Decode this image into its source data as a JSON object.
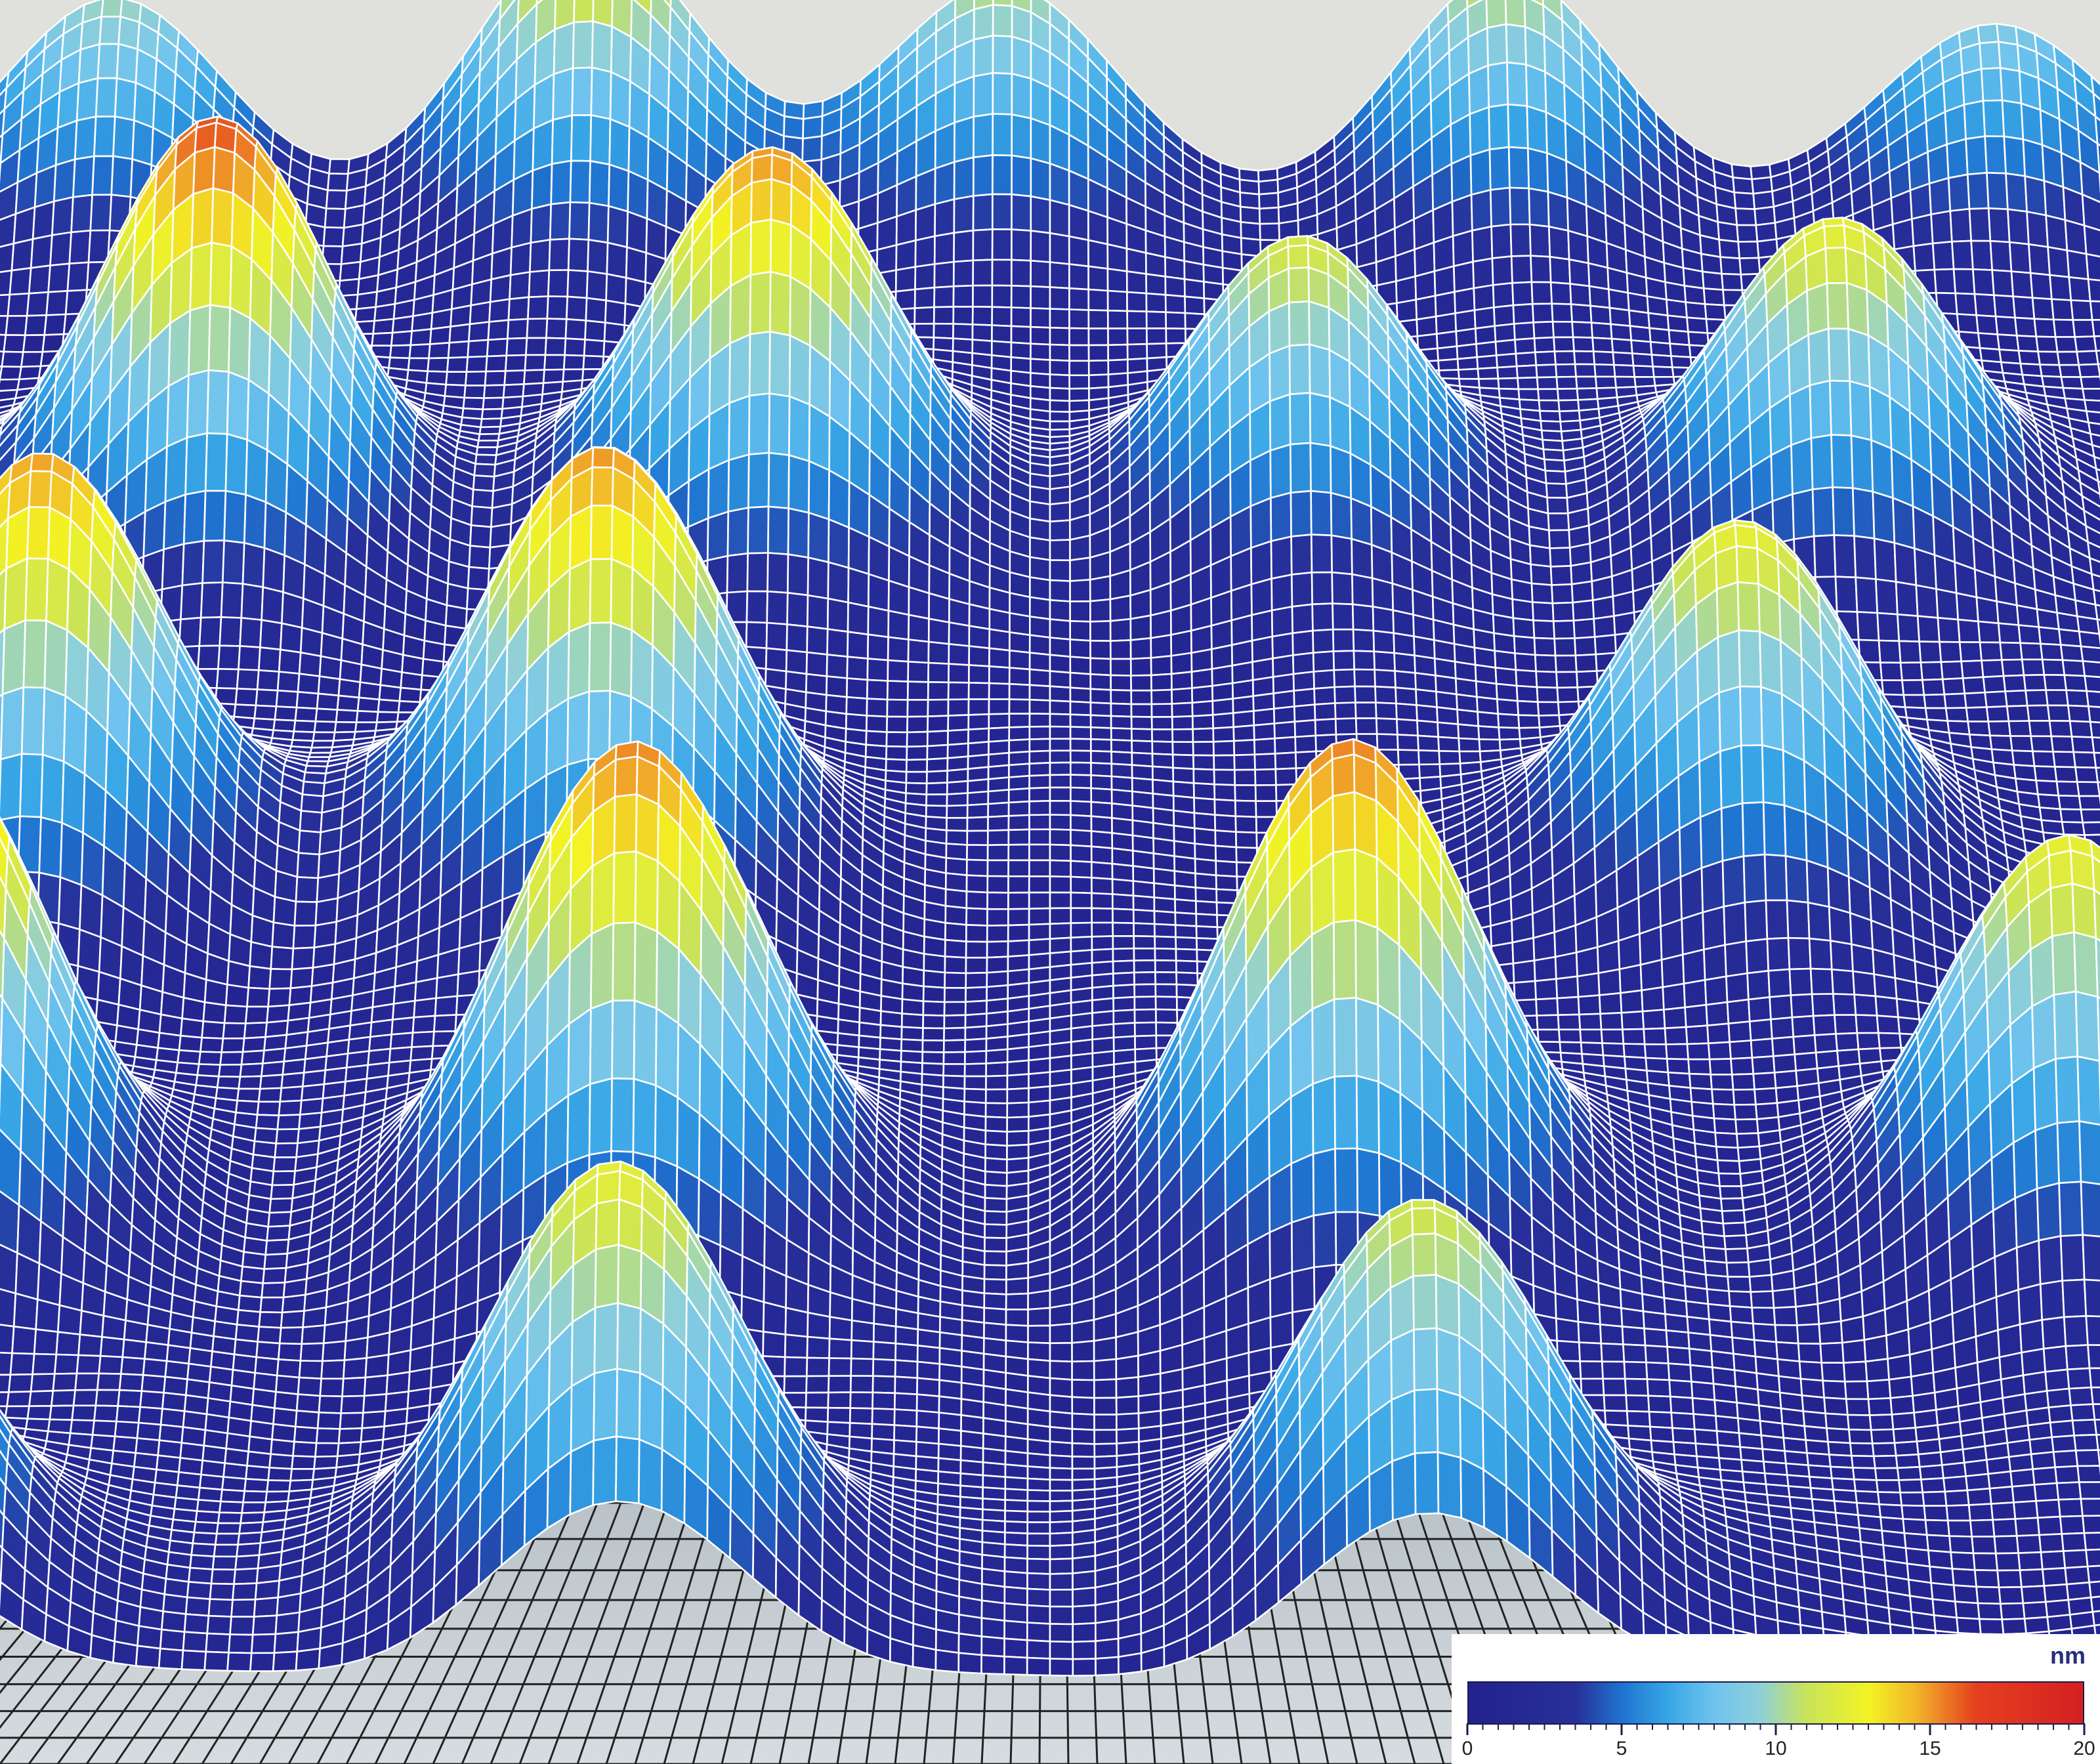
{
  "chart_data": {
    "type": "surface",
    "description_colormap": "blue-cyan-yellow-red",
    "colorbar": {
      "unit": "nm",
      "ticks": [
        0,
        5,
        10,
        15,
        20
      ],
      "range": [
        0,
        20
      ],
      "stops": [
        {
          "value": 0,
          "color": "#23218e"
        },
        {
          "value": 3.5,
          "color": "#27309a"
        },
        {
          "value": 5,
          "color": "#1f74d0"
        },
        {
          "value": 6.5,
          "color": "#38a6e6"
        },
        {
          "value": 8,
          "color": "#6fc3ee"
        },
        {
          "value": 9.5,
          "color": "#8fd0d8"
        },
        {
          "value": 11,
          "color": "#c9e35a"
        },
        {
          "value": 13,
          "color": "#f3f324"
        },
        {
          "value": 14.5,
          "color": "#f2b82a"
        },
        {
          "value": 16.5,
          "color": "#e5401f"
        },
        {
          "value": 20,
          "color": "#d42020"
        }
      ]
    },
    "peaks": [
      {
        "row": 0,
        "col": 0.05,
        "height": 9
      },
      {
        "row": 0,
        "col": 1.05,
        "height": 12.5
      },
      {
        "row": 0,
        "col": 1.9,
        "height": 10
      },
      {
        "row": 0,
        "col": 2.95,
        "height": 10
      },
      {
        "row": 0,
        "col": 3.95,
        "height": 8
      },
      {
        "row": 1,
        "col": 0.35,
        "height": 15.5
      },
      {
        "row": 1,
        "col": 1.45,
        "height": 14.5
      },
      {
        "row": 1,
        "col": 2.5,
        "height": 10.5
      },
      {
        "row": 1,
        "col": 3.55,
        "height": 11.5
      },
      {
        "row": 2,
        "col": 0.1,
        "height": 14
      },
      {
        "row": 2,
        "col": 1.15,
        "height": 14.5
      },
      {
        "row": 2,
        "col": 3.3,
        "height": 11.5
      },
      {
        "row": 3,
        "col": -0.05,
        "height": 15
      },
      {
        "row": 3,
        "col": 1.25,
        "height": 14.5
      },
      {
        "row": 3,
        "col": 2.55,
        "height": 14.5
      },
      {
        "row": 3,
        "col": 3.85,
        "height": 11.5
      },
      {
        "row": 4,
        "col": -0.1,
        "height": 10
      },
      {
        "row": 4,
        "col": 1.25,
        "height": 11.5
      },
      {
        "row": 4,
        "col": 2.65,
        "height": 10.5
      }
    ],
    "colors": {
      "mesh_line": "#ffffff",
      "backdrop_top": "#e2e2de",
      "back_plate": "#aab4bc",
      "floor": "#c4cdd2",
      "floor_line": "#222222"
    }
  }
}
